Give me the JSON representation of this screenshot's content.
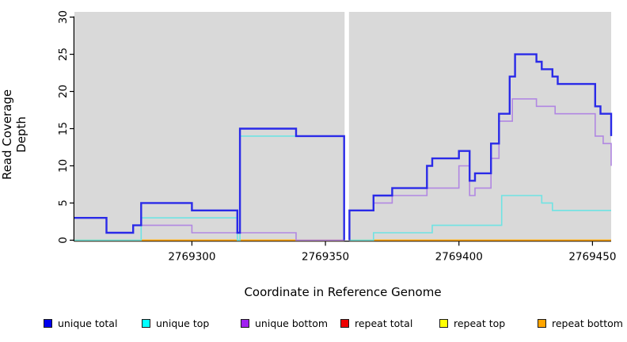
{
  "chart_data": {
    "type": "line",
    "subtype": "step",
    "title": "",
    "xlabel": "Coordinate in Reference Genome",
    "ylabel": "Read Coverage Depth",
    "xlim": [
      2769256,
      2769457
    ],
    "ylim": [
      0,
      30
    ],
    "x_ticks": [
      2769300,
      2769350,
      2769400,
      2769450
    ],
    "y_ticks": [
      0,
      5,
      10,
      15,
      20,
      25,
      30
    ],
    "grid": false,
    "plot_bg": "#d9d9d9",
    "figure_bg": "#ffffff",
    "no_data_gap": {
      "from": 2769357,
      "to": 2769359,
      "color": "#ffffff"
    },
    "legend_position": "bottom",
    "series": [
      {
        "name": "repeat total",
        "line_color": "#E02020",
        "legend_color": "#EE0000",
        "width": 1.5,
        "segments": [
          [
            [
              2769256,
              0
            ],
            [
              2769357,
              0
            ]
          ],
          [
            [
              2769359,
              0
            ],
            [
              2769457,
              0
            ]
          ]
        ]
      },
      {
        "name": "repeat top",
        "line_color": "#F2F200",
        "legend_color": "#FFFF00",
        "width": 1.5,
        "segments": [
          [
            [
              2769256,
              0
            ],
            [
              2769357,
              0
            ]
          ],
          [
            [
              2769359,
              0
            ],
            [
              2769457,
              0
            ]
          ]
        ]
      },
      {
        "name": "repeat bottom",
        "line_color": "#FFA510",
        "legend_color": "#FFA500",
        "width": 1.6,
        "segments": [
          [
            [
              2769256,
              0
            ],
            [
              2769357,
              0
            ]
          ],
          [
            [
              2769359,
              0
            ],
            [
              2769457,
              0
            ]
          ]
        ]
      },
      {
        "name": "unique top",
        "line_color": "#6FE3E3",
        "legend_color": "#00FFFF",
        "width": 1.6,
        "segments": [
          [
            [
              2769256,
              0
            ],
            [
              2769281,
              3
            ],
            [
              2769317,
              0
            ],
            [
              2769318,
              14
            ],
            [
              2769357,
              0
            ]
          ],
          [
            [
              2769359,
              0
            ],
            [
              2769368,
              1
            ],
            [
              2769390,
              2
            ],
            [
              2769416,
              6
            ],
            [
              2769431,
              5
            ],
            [
              2769435,
              4
            ],
            [
              2769457,
              4
            ]
          ]
        ]
      },
      {
        "name": "unique bottom",
        "line_color": "#B187E2",
        "legend_color": "#A020F0",
        "width": 1.6,
        "segments": [
          [
            [
              2769256,
              3
            ],
            [
              2769268,
              1
            ],
            [
              2769278,
              2
            ],
            [
              2769300,
              1
            ],
            [
              2769339,
              0
            ],
            [
              2769357,
              0
            ]
          ],
          [
            [
              2769359,
              0
            ],
            [
              2769359,
              4
            ],
            [
              2769368,
              5
            ],
            [
              2769375,
              6
            ],
            [
              2769388,
              7
            ],
            [
              2769400,
              10
            ],
            [
              2769404,
              6
            ],
            [
              2769406,
              7
            ],
            [
              2769412,
              11
            ],
            [
              2769415,
              16
            ],
            [
              2769420,
              19
            ],
            [
              2769429,
              18
            ],
            [
              2769436,
              17
            ],
            [
              2769451,
              14
            ],
            [
              2769454,
              13
            ],
            [
              2769457,
              10
            ]
          ]
        ]
      },
      {
        "name": "unique total",
        "line_color": "#2A2AE8",
        "legend_color": "#0000EE",
        "width": 2.4,
        "segments": [
          [
            [
              2769256,
              3
            ],
            [
              2769268,
              1
            ],
            [
              2769278,
              2
            ],
            [
              2769281,
              5
            ],
            [
              2769300,
              4
            ],
            [
              2769317,
              1
            ],
            [
              2769318,
              15
            ],
            [
              2769339,
              14
            ],
            [
              2769357,
              0
            ]
          ],
          [
            [
              2769359,
              0
            ],
            [
              2769359,
              4
            ],
            [
              2769368,
              6
            ],
            [
              2769375,
              7
            ],
            [
              2769388,
              10
            ],
            [
              2769390,
              11
            ],
            [
              2769400,
              12
            ],
            [
              2769404,
              8
            ],
            [
              2769406,
              9
            ],
            [
              2769412,
              13
            ],
            [
              2769415,
              17
            ],
            [
              2769419,
              22
            ],
            [
              2769421,
              25
            ],
            [
              2769429,
              24
            ],
            [
              2769431,
              23
            ],
            [
              2769435,
              22
            ],
            [
              2769437,
              21
            ],
            [
              2769451,
              18
            ],
            [
              2769453,
              17
            ],
            [
              2769457,
              14
            ]
          ]
        ]
      }
    ],
    "legend": [
      {
        "label": "unique total",
        "color": "#0000EE"
      },
      {
        "label": "unique top",
        "color": "#00FFFF"
      },
      {
        "label": "unique bottom",
        "color": "#A020F0"
      },
      {
        "label": "repeat total",
        "color": "#EE0000"
      },
      {
        "label": "repeat top",
        "color": "#FFFF00"
      },
      {
        "label": "repeat bottom",
        "color": "#FFA500"
      }
    ]
  }
}
